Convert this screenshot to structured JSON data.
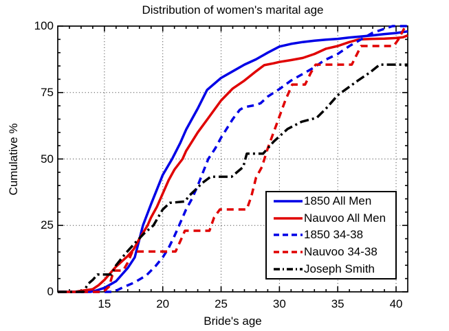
{
  "chart_data": {
    "type": "line",
    "title": "Distribution of women's marital age",
    "xlabel": "Bride's age",
    "ylabel": "Cumulative %",
    "xlim": [
      11,
      41
    ],
    "ylim": [
      0,
      100
    ],
    "x_ticks": [
      15,
      20,
      25,
      30,
      35,
      40
    ],
    "y_ticks": [
      0,
      25,
      50,
      75,
      100
    ],
    "x_minor_step": 1,
    "y_minor_step": 5,
    "grid": true,
    "legend_position": "lower-right",
    "colors": {
      "blue": "#0000e6",
      "red": "#e00000",
      "black": "#000000"
    },
    "series": [
      {
        "name": "1850 All Men",
        "color": "blue",
        "style": "solid",
        "points": [
          [
            11,
            0
          ],
          [
            13.8,
            0
          ],
          [
            14.3,
            0.5
          ],
          [
            15,
            1.5
          ],
          [
            16,
            4
          ],
          [
            17,
            9
          ],
          [
            17.6,
            13
          ],
          [
            18.3,
            25
          ],
          [
            19,
            33
          ],
          [
            20,
            44
          ],
          [
            20.8,
            50
          ],
          [
            21.5,
            56
          ],
          [
            22,
            61
          ],
          [
            23,
            69
          ],
          [
            23.8,
            76
          ],
          [
            25,
            80.5
          ],
          [
            26,
            83
          ],
          [
            27,
            85.5
          ],
          [
            28,
            87.5
          ],
          [
            29,
            90
          ],
          [
            30,
            92.3
          ],
          [
            31,
            93.3
          ],
          [
            32,
            94
          ],
          [
            33,
            94.5
          ],
          [
            34,
            94.9
          ],
          [
            35,
            95.2
          ],
          [
            36,
            95.7
          ],
          [
            37,
            96.1
          ],
          [
            38,
            96.5
          ],
          [
            39,
            97
          ],
          [
            40,
            97.4
          ],
          [
            41,
            98
          ]
        ]
      },
      {
        "name": "Nauvoo All Men",
        "color": "red",
        "style": "solid",
        "points": [
          [
            11,
            0
          ],
          [
            12.5,
            0
          ],
          [
            13,
            0.4
          ],
          [
            14,
            1
          ],
          [
            14.5,
            2.5
          ],
          [
            15,
            4.5
          ],
          [
            15.5,
            7
          ],
          [
            16,
            9.5
          ],
          [
            17,
            13.5
          ],
          [
            17.5,
            16
          ],
          [
            18,
            20
          ],
          [
            18.7,
            25
          ],
          [
            19,
            28
          ],
          [
            19.5,
            32
          ],
          [
            20,
            37
          ],
          [
            20.5,
            42
          ],
          [
            21,
            46
          ],
          [
            21.7,
            50
          ],
          [
            22,
            53
          ],
          [
            23,
            60
          ],
          [
            24,
            66
          ],
          [
            25,
            72
          ],
          [
            26,
            76.5
          ],
          [
            27,
            79.5
          ],
          [
            28,
            83
          ],
          [
            28.7,
            85.3
          ],
          [
            29.5,
            86
          ],
          [
            30,
            86.5
          ],
          [
            31,
            87.2
          ],
          [
            32,
            88
          ],
          [
            33,
            89.5
          ],
          [
            34,
            91.5
          ],
          [
            35,
            92.5
          ],
          [
            36,
            94
          ],
          [
            36.8,
            95
          ],
          [
            38,
            95.2
          ],
          [
            39,
            95.3
          ],
          [
            40,
            95.5
          ],
          [
            40.6,
            95.8
          ],
          [
            41,
            96.5
          ]
        ]
      },
      {
        "name": "1850 34-38",
        "color": "blue",
        "style": "dashed",
        "points": [
          [
            11,
            0
          ],
          [
            15.8,
            0
          ],
          [
            16.5,
            1.5
          ],
          [
            17.6,
            3.6
          ],
          [
            18.6,
            6.2
          ],
          [
            19.4,
            9.8
          ],
          [
            20,
            13
          ],
          [
            20.5,
            16.5
          ],
          [
            21,
            21
          ],
          [
            21.4,
            25
          ],
          [
            22,
            31
          ],
          [
            22.5,
            35
          ],
          [
            23,
            40
          ],
          [
            23.9,
            50
          ],
          [
            24.5,
            54
          ],
          [
            25,
            58
          ],
          [
            26,
            65
          ],
          [
            26.6,
            68.5
          ],
          [
            27,
            69.5
          ],
          [
            28,
            70.3
          ],
          [
            28.4,
            71
          ],
          [
            29,
            73.5
          ],
          [
            30,
            76.3
          ],
          [
            31,
            79.5
          ],
          [
            32,
            82
          ],
          [
            33,
            84.5
          ],
          [
            33.8,
            87
          ],
          [
            35,
            89.5
          ],
          [
            36,
            92.5
          ],
          [
            37,
            95
          ],
          [
            38,
            97.5
          ],
          [
            39,
            99
          ],
          [
            39.7,
            100
          ],
          [
            41,
            100
          ]
        ]
      },
      {
        "name": "Nauvoo 34-38",
        "color": "red",
        "style": "dashed",
        "points": [
          [
            11,
            0
          ],
          [
            14.9,
            0
          ],
          [
            15.4,
            2
          ],
          [
            15.8,
            8
          ],
          [
            16.6,
            8
          ],
          [
            17,
            11
          ],
          [
            17.4,
            15.2
          ],
          [
            21.1,
            15.2
          ],
          [
            21.5,
            19
          ],
          [
            21.9,
            23
          ],
          [
            24,
            23
          ],
          [
            24.4,
            28
          ],
          [
            24.9,
            31
          ],
          [
            27.2,
            31
          ],
          [
            27.6,
            36
          ],
          [
            28,
            43
          ],
          [
            28.5,
            47
          ],
          [
            29,
            54
          ],
          [
            29.5,
            60
          ],
          [
            30,
            66
          ],
          [
            30.5,
            72
          ],
          [
            31.1,
            78
          ],
          [
            32.2,
            78
          ],
          [
            32.7,
            82.5
          ],
          [
            33.1,
            85.5
          ],
          [
            36.2,
            85.5
          ],
          [
            36.6,
            89
          ],
          [
            37,
            92.5
          ],
          [
            39.8,
            92.5
          ],
          [
            40.2,
            95
          ],
          [
            40.8,
            100
          ],
          [
            41,
            100
          ]
        ]
      },
      {
        "name": "Joseph Smith",
        "color": "black",
        "style": "dashdot",
        "points": [
          [
            11,
            0
          ],
          [
            13.2,
            0
          ],
          [
            13.6,
            3
          ],
          [
            14,
            4.5
          ],
          [
            14.4,
            6.5
          ],
          [
            15.6,
            6.5
          ],
          [
            16,
            10
          ],
          [
            16.8,
            14.4
          ],
          [
            17.6,
            18.3
          ],
          [
            18.4,
            22
          ],
          [
            19.2,
            25
          ],
          [
            20,
            31
          ],
          [
            20.6,
            33.5
          ],
          [
            21.9,
            34
          ],
          [
            22.3,
            36.3
          ],
          [
            22.8,
            38.4
          ],
          [
            23.4,
            41
          ],
          [
            24.1,
            43.3
          ],
          [
            25.9,
            43.3
          ],
          [
            26.9,
            47
          ],
          [
            27.2,
            52
          ],
          [
            28.6,
            52
          ],
          [
            29.5,
            56.5
          ],
          [
            30.7,
            61.3
          ],
          [
            31.9,
            64
          ],
          [
            33.2,
            65.5
          ],
          [
            34,
            69
          ],
          [
            35,
            74
          ],
          [
            36.7,
            79.4
          ],
          [
            37.8,
            82.7
          ],
          [
            38.6,
            85.5
          ],
          [
            41,
            85.5
          ]
        ]
      }
    ]
  }
}
